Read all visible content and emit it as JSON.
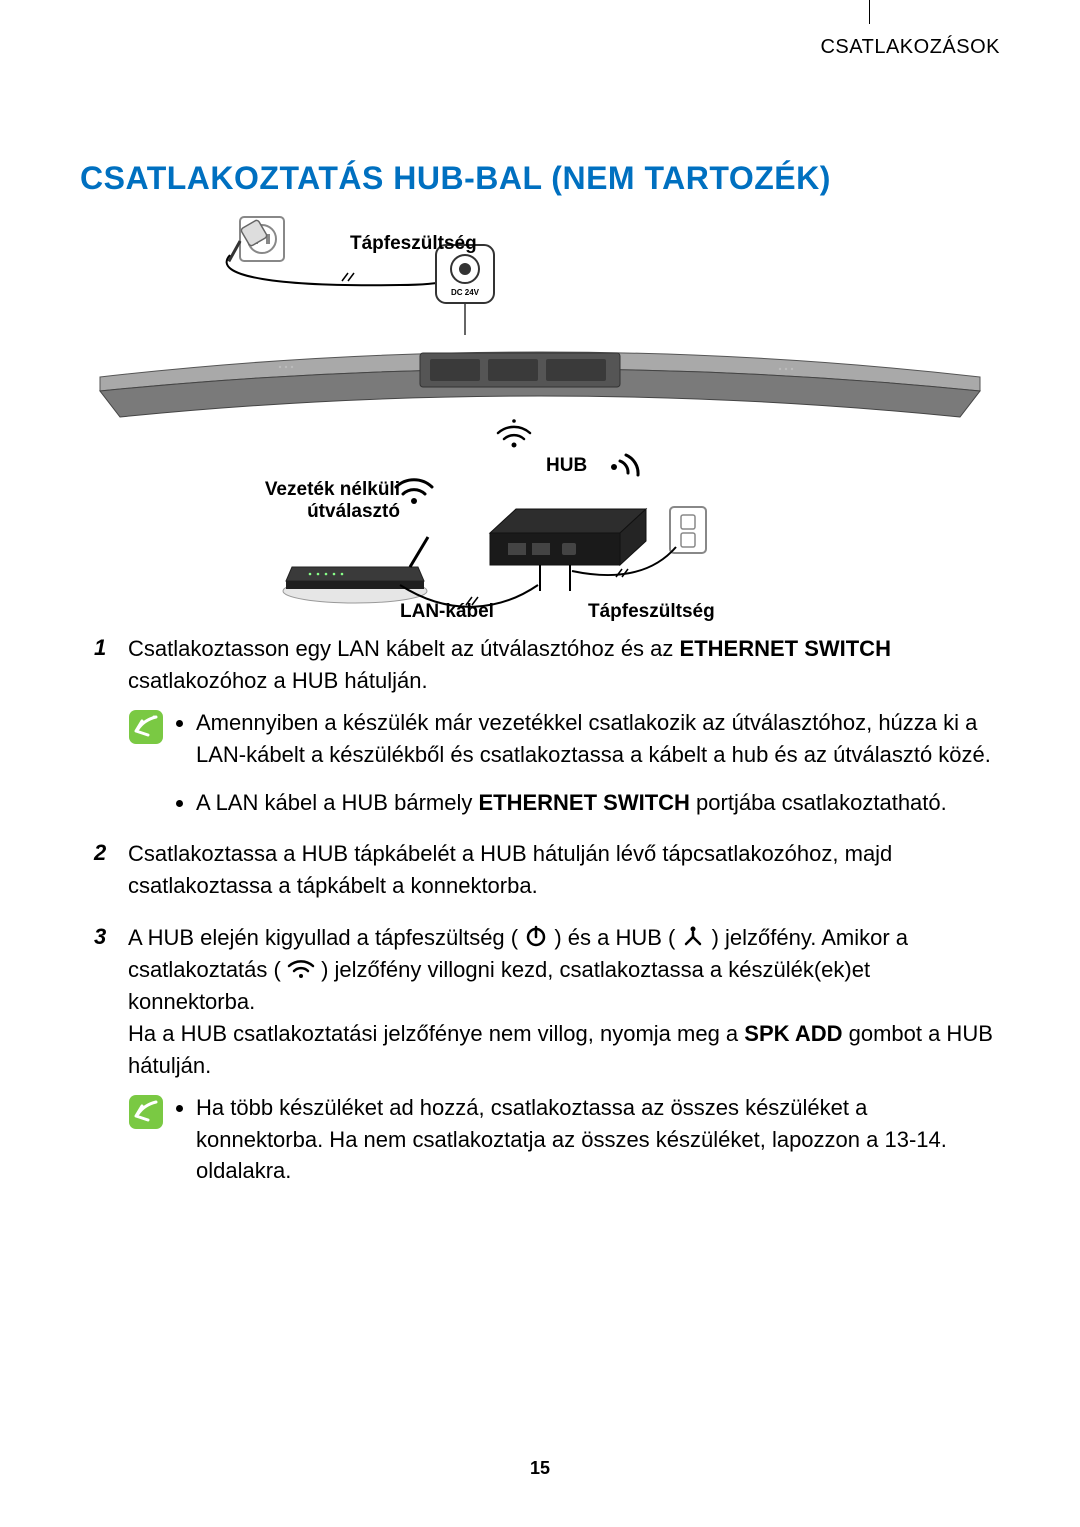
{
  "header": {
    "label": "CSATLAKOZÁSOK"
  },
  "title": "CSATLAKOZTATÁS HUB-BAL (NEM TARTOZÉK)",
  "diagram": {
    "labels": {
      "power_top": "Tápfeszültség",
      "hub": "HUB",
      "router_line1": "Vezeték nélküli",
      "router_line2": "útválasztó",
      "lan": "LAN-kábel",
      "power_bottom": "Tápfeszültség"
    },
    "colors": {
      "title": "#0070c0",
      "note_icon_fill": "#7ac943",
      "note_icon_stroke": "#ffffff",
      "line": "#000000",
      "soundbar_fill": "#7a7a7a",
      "soundbar_light": "#a9a9a9",
      "hub_fill": "#2d2d2d",
      "router_fill": "#3a3a3a",
      "outlet_stroke": "#888888"
    }
  },
  "steps": [
    {
      "num": "1",
      "text_html": "Csatlakoztasson egy LAN kábelt az útválasztóhoz és az <b>ETHERNET SWITCH</b> csatlakozóhoz a HUB hátulján.",
      "notes": [
        "Amennyiben a készülék már vezetékkel csatlakozik az útválasztóhoz, húzza ki a LAN-kábelt a készülékből és csatlakoztassa a kábelt a hub és az útválasztó közé.",
        "A LAN kábel a HUB bármely <b>ETHERNET SWITCH</b> portjába csatlakoztatható."
      ]
    },
    {
      "num": "2",
      "text_html": "Csatlakoztassa a HUB tápkábelét a HUB hátulján lévő tápcsatlakozóhoz, majd csatlakoztassa a tápkábelt a konnektorba."
    },
    {
      "num": "3",
      "text_html": "A HUB elején kigyullad a tápfeszültség ( {POWER} ) és a HUB ( {FORK} ) jelzőfény. Amikor a csatlakoztatás ( {WIFI} ) jelzőfény villogni kezd, csatlakoztassa a készülék(ek)et konnektorba.<br>Ha a HUB csatlakoztatási jelzőfénye nem villog, nyomja meg a <b>SPK ADD</b> gombot a HUB hátulján.",
      "notes": [
        "Ha több készüléket ad hozzá, csatlakoztassa az összes készüléket a konnektorba. Ha nem csatlakoztatja az összes készüléket, lapozzon a 13-14. oldalakra."
      ]
    }
  ],
  "page_number": "15"
}
